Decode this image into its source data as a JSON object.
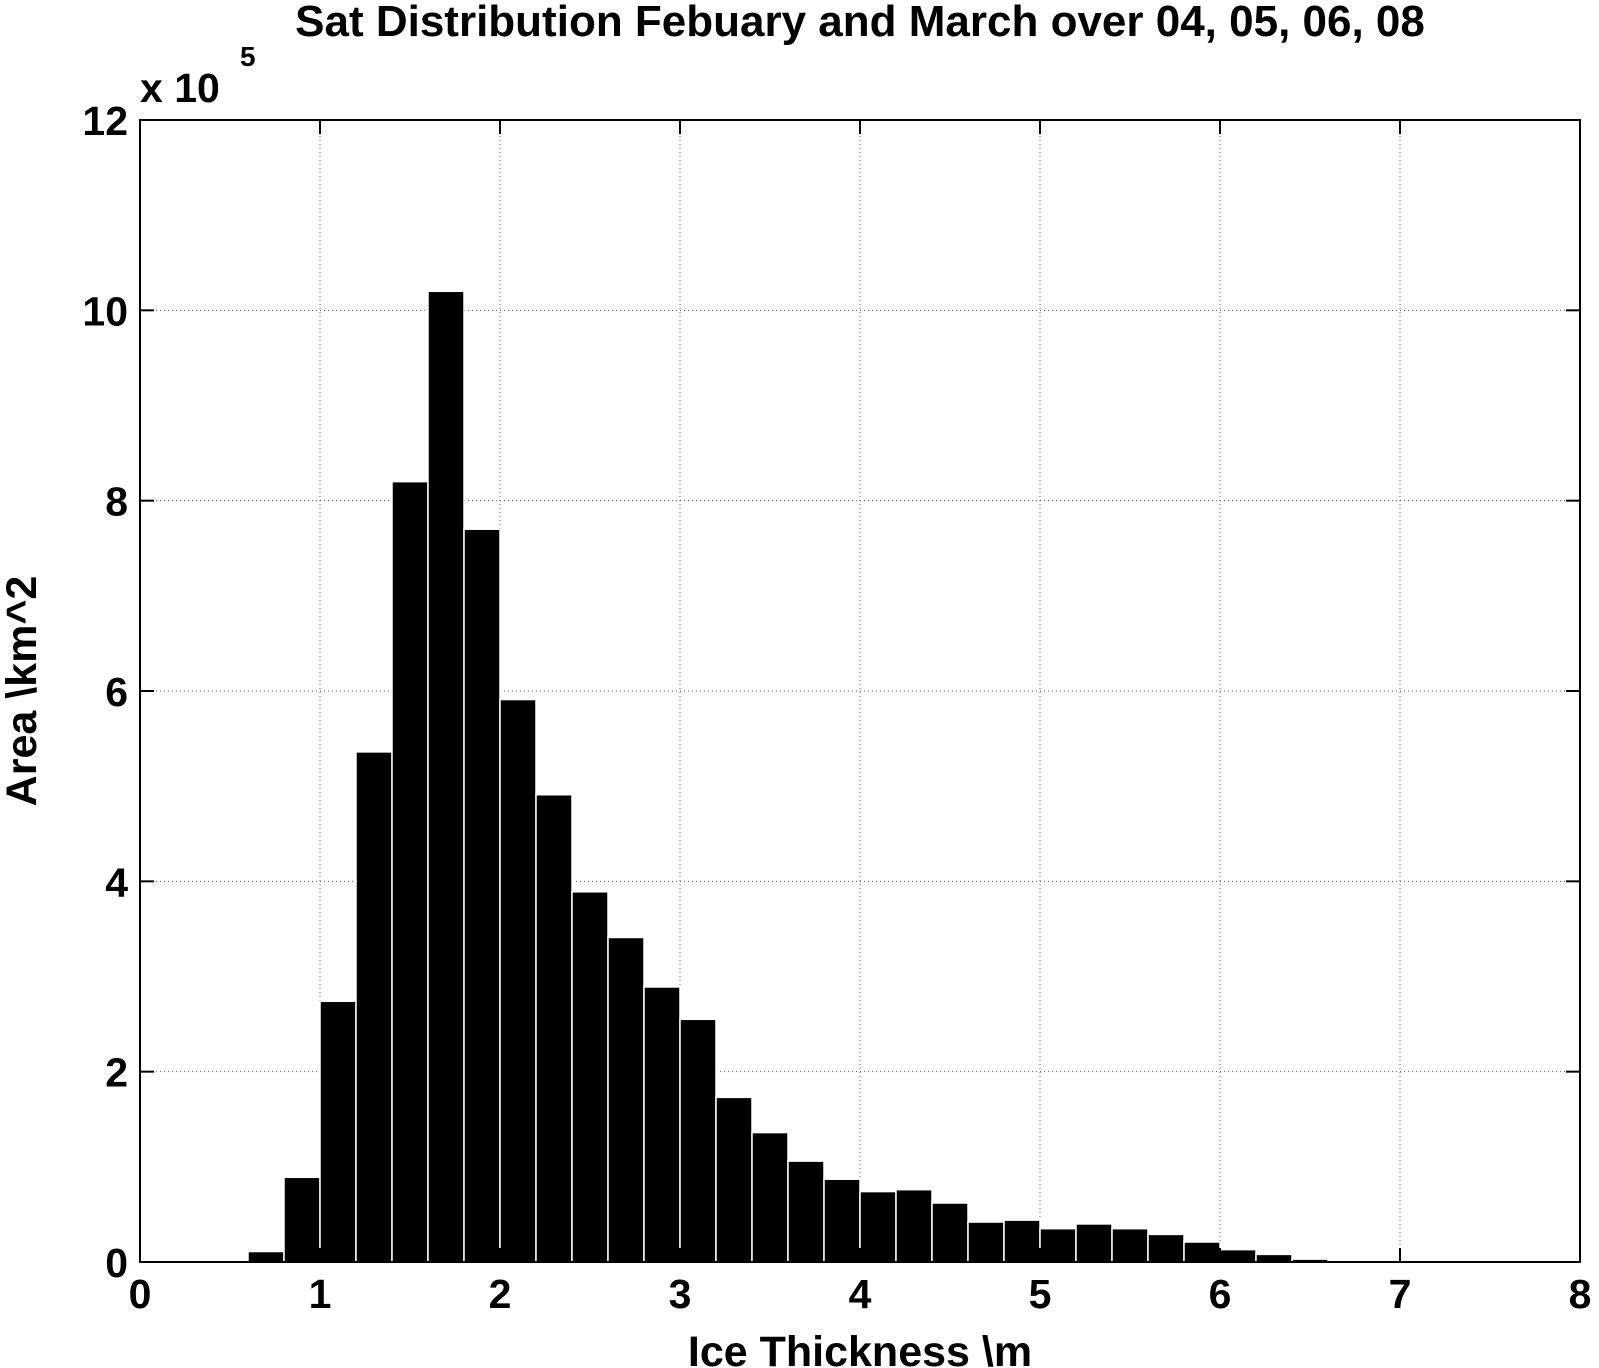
{
  "chart_data": {
    "type": "bar",
    "title": "Sat Distribution Febuary and March over 04, 05, 06, 08",
    "xlabel": "Ice Thickness \\m",
    "ylabel": "Area \\km^2",
    "y_scale_base": "x 10",
    "y_scale_exponent": "5",
    "xlim": [
      0,
      8
    ],
    "ylim": [
      0,
      12
    ],
    "x_ticks": [
      0,
      1,
      2,
      3,
      4,
      5,
      6,
      7,
      8
    ],
    "y_ticks": [
      0,
      2,
      4,
      6,
      8,
      10,
      12
    ],
    "grid": true,
    "bin_width": 0.2,
    "bin_centers": [
      0.7,
      0.9,
      1.1,
      1.3,
      1.5,
      1.7,
      1.9,
      2.1,
      2.3,
      2.5,
      2.7,
      2.9,
      3.1,
      3.3,
      3.5,
      3.7,
      3.9,
      4.1,
      4.3,
      4.5,
      4.7,
      4.9,
      5.1,
      5.3,
      5.5,
      5.7,
      5.9,
      6.1,
      6.3,
      6.5
    ],
    "values": [
      0.11,
      0.89,
      2.74,
      5.36,
      8.2,
      10.2,
      7.7,
      5.91,
      4.91,
      3.89,
      3.41,
      2.89,
      2.55,
      1.73,
      1.36,
      1.06,
      0.87,
      0.74,
      0.76,
      0.62,
      0.42,
      0.44,
      0.35,
      0.4,
      0.35,
      0.29,
      0.21,
      0.13,
      0.08,
      0.03
    ]
  }
}
